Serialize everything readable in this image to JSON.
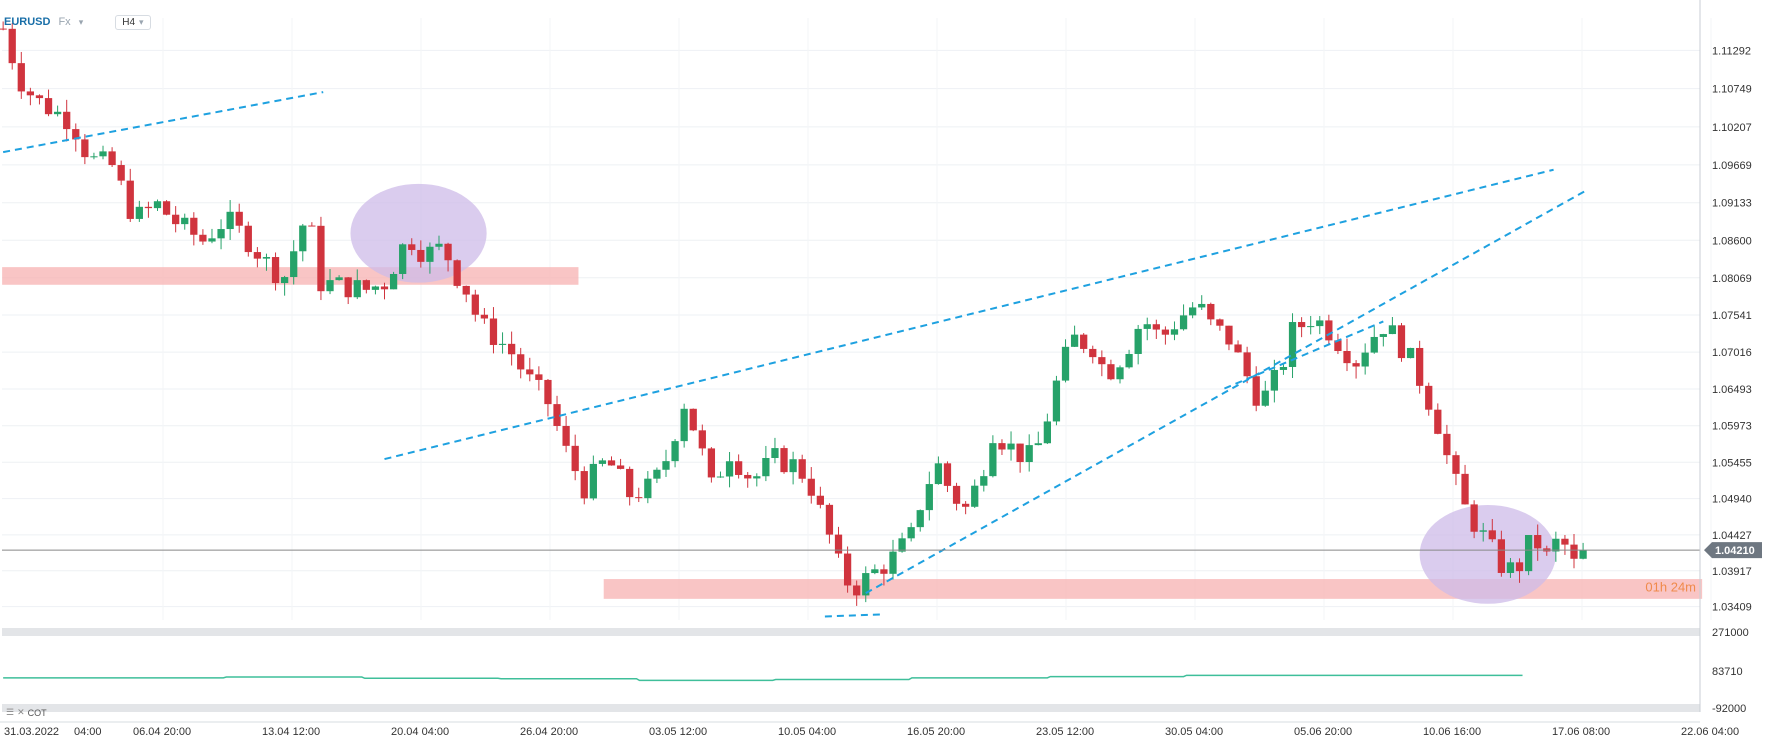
{
  "toolbar": {
    "symbol": "EURUSD",
    "market": "Fx",
    "timeframe": "H4"
  },
  "colors": {
    "up": "#26a269",
    "down": "#d0343e",
    "trend": "#1ea1e0",
    "zone": "#f7b2b2",
    "highlight": "#cdbbe8",
    "indicator": "#3fbf9a",
    "price_line": "#888888"
  },
  "chart_data": {
    "type": "candlestick",
    "symbol": "EURUSD",
    "timeframe": "H4",
    "ylim": [
      1.0322,
      1.1175
    ],
    "y_ticks": [
      "1.11292",
      "1.10749",
      "1.10207",
      "1.09669",
      "1.09133",
      "1.08600",
      "1.08069",
      "1.07541",
      "1.07016",
      "1.06493",
      "1.05973",
      "1.05455",
      "1.04940",
      "1.04427",
      "1.03917",
      "1.03409"
    ],
    "x_ticks": [
      "31.03.2022",
      "04:00",
      "06.04 20:00",
      "13.04 12:00",
      "20.04 04:00",
      "26.04 20:00",
      "03.05 12:00",
      "10.05 04:00",
      "16.05 20:00",
      "23.05 12:00",
      "30.05 04:00",
      "05.06 20:00",
      "10.06 16:00",
      "17.06 08:00",
      "22.06 04:00"
    ],
    "last_price": "1.04210",
    "countdown": "01h 24m",
    "close_path": [
      [
        0,
        1.116
      ],
      [
        7,
        1.109
      ],
      [
        14,
        1.106
      ],
      [
        24,
        1.104
      ],
      [
        30,
        1.103
      ],
      [
        38,
        1.0975
      ],
      [
        48,
        1.0965
      ],
      [
        58,
        1.089
      ],
      [
        68,
        1.091
      ],
      [
        78,
        1.088
      ],
      [
        88,
        1.086
      ],
      [
        98,
        1.089
      ],
      [
        108,
        1.086
      ],
      [
        118,
        1.082
      ],
      [
        124,
        1.081
      ],
      [
        134,
        1.09
      ],
      [
        140,
        1.08
      ],
      [
        150,
        1.0795
      ],
      [
        160,
        1.079
      ],
      [
        168,
        1.08
      ],
      [
        176,
        1.085
      ],
      [
        180,
        1.086
      ],
      [
        186,
        1.084
      ],
      [
        194,
        1.085
      ],
      [
        200,
        1.081
      ],
      [
        204,
        1.079
      ],
      [
        210,
        1.074
      ],
      [
        218,
        1.072
      ],
      [
        224,
        1.07
      ],
      [
        232,
        1.066
      ],
      [
        240,
        1.063
      ],
      [
        248,
        1.056
      ],
      [
        256,
        1.051
      ],
      [
        266,
        1.055
      ],
      [
        276,
        1.05
      ],
      [
        286,
        1.051
      ],
      [
        292,
        1.055
      ],
      [
        300,
        1.063
      ],
      [
        306,
        1.058
      ],
      [
        312,
        1.051
      ],
      [
        320,
        1.056
      ],
      [
        330,
        1.052
      ],
      [
        340,
        1.055
      ],
      [
        350,
        1.054
      ],
      [
        356,
        1.051
      ],
      [
        364,
        1.044
      ],
      [
        370,
        1.038
      ],
      [
        376,
        1.037
      ],
      [
        384,
        1.039
      ],
      [
        392,
        1.041
      ],
      [
        400,
        1.044
      ],
      [
        406,
        1.051
      ],
      [
        412,
        1.054
      ],
      [
        418,
        1.05
      ],
      [
        424,
        1.048
      ],
      [
        430,
        1.052
      ],
      [
        436,
        1.059
      ],
      [
        446,
        1.056
      ],
      [
        454,
        1.055
      ],
      [
        460,
        1.061
      ],
      [
        466,
        1.068
      ],
      [
        472,
        1.072
      ],
      [
        480,
        1.071
      ],
      [
        486,
        1.067
      ],
      [
        494,
        1.07
      ],
      [
        502,
        1.075
      ],
      [
        510,
        1.072
      ],
      [
        518,
        1.075
      ],
      [
        526,
        1.077
      ],
      [
        532,
        1.074
      ],
      [
        540,
        1.072
      ],
      [
        546,
        1.068
      ],
      [
        554,
        1.063
      ],
      [
        562,
        1.067
      ],
      [
        568,
        1.073
      ],
      [
        576,
        1.075
      ],
      [
        582,
        1.074
      ],
      [
        590,
        1.071
      ],
      [
        596,
        1.069
      ],
      [
        602,
        1.072
      ],
      [
        608,
        1.074
      ],
      [
        614,
        1.072
      ],
      [
        620,
        1.069
      ],
      [
        626,
        1.065
      ],
      [
        632,
        1.06
      ],
      [
        638,
        1.053
      ],
      [
        644,
        1.048
      ],
      [
        650,
        1.045
      ],
      [
        656,
        1.042
      ],
      [
        662,
        1.039
      ],
      [
        668,
        1.04
      ],
      [
        674,
        1.044
      ],
      [
        680,
        1.041
      ],
      [
        686,
        1.044
      ],
      [
        692,
        1.04
      ],
      [
        698,
        1.0421
      ]
    ],
    "zones": [
      {
        "from": 0,
        "to": 253,
        "low": 1.0797,
        "high": 1.0822
      },
      {
        "from": 265,
        "to": 748,
        "low": 1.0352,
        "high": 1.038
      }
    ],
    "trendlines": [
      {
        "from": [
          0,
          1.0985
        ],
        "to": [
          141,
          1.107
        ]
      },
      {
        "from": [
          168,
          1.055
        ],
        "to": [
          683,
          1.096
        ]
      },
      {
        "from": [
          380,
          1.036
        ],
        "to": [
          697,
          1.093
        ]
      },
      {
        "from": [
          538,
          1.065
        ],
        "to": [
          608,
          1.0745
        ]
      },
      {
        "from": [
          362,
          1.0327
        ],
        "to": [
          388,
          1.033
        ]
      }
    ],
    "highlights": [
      {
        "cx": 183,
        "cy": 1.087,
        "rx": 30,
        "ry": 0.007
      },
      {
        "cx": 654,
        "cy": 1.0415,
        "rx": 30,
        "ry": 0.007
      }
    ],
    "indicator": {
      "name": "COT",
      "ticks": [
        "271000",
        "83710",
        "-92000"
      ],
      "ylim": [
        -92000,
        271000
      ],
      "steps": [
        [
          0,
          52000
        ],
        [
          97,
          56000
        ],
        [
          158,
          50000
        ],
        [
          218,
          48000
        ],
        [
          279,
          40000
        ],
        [
          339,
          44000
        ],
        [
          399,
          52000
        ],
        [
          460,
          58000
        ],
        [
          520,
          64000
        ],
        [
          580,
          64000
        ],
        [
          640,
          64000
        ],
        [
          668,
          64000
        ]
      ]
    }
  }
}
